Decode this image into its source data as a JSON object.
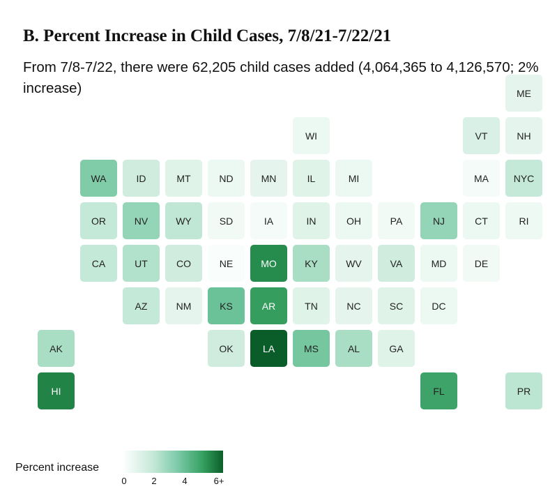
{
  "chart_data": {
    "type": "heatmap",
    "title": "B. Percent Increase in Child Cases, 7/8/21-7/22/21",
    "subtitle": "From 7/8-7/22, there were 62,205 child cases added (4,064,365 to 4,126,570; 2% increase)",
    "legend": {
      "label": "Percent increase",
      "ticks": [
        "0",
        "2",
        "4",
        "6+"
      ],
      "range": [
        0,
        6
      ]
    },
    "states": [
      {
        "abbr": "ME",
        "row": 0,
        "col": 11,
        "value": 0.8
      },
      {
        "abbr": "WI",
        "row": 1,
        "col": 6,
        "value": 0.6
      },
      {
        "abbr": "VT",
        "row": 1,
        "col": 10,
        "value": 1.2
      },
      {
        "abbr": "NH",
        "row": 1,
        "col": 11,
        "value": 0.8
      },
      {
        "abbr": "WA",
        "row": 2,
        "col": 1,
        "value": 3.0
      },
      {
        "abbr": "ID",
        "row": 2,
        "col": 2,
        "value": 1.4
      },
      {
        "abbr": "MT",
        "row": 2,
        "col": 3,
        "value": 1.0
      },
      {
        "abbr": "ND",
        "row": 2,
        "col": 4,
        "value": 0.6
      },
      {
        "abbr": "MN",
        "row": 2,
        "col": 5,
        "value": 0.8
      },
      {
        "abbr": "IL",
        "row": 2,
        "col": 6,
        "value": 1.0
      },
      {
        "abbr": "MI",
        "row": 2,
        "col": 7,
        "value": 0.6
      },
      {
        "abbr": "MA",
        "row": 2,
        "col": 10,
        "value": 0.3
      },
      {
        "abbr": "NYC",
        "row": 2,
        "col": 11,
        "value": 1.6
      },
      {
        "abbr": "OR",
        "row": 3,
        "col": 1,
        "value": 1.6
      },
      {
        "abbr": "NV",
        "row": 3,
        "col": 2,
        "value": 2.6
      },
      {
        "abbr": "WY",
        "row": 3,
        "col": 3,
        "value": 1.7
      },
      {
        "abbr": "SD",
        "row": 3,
        "col": 4,
        "value": 0.4
      },
      {
        "abbr": "IA",
        "row": 3,
        "col": 5,
        "value": 0.3
      },
      {
        "abbr": "IN",
        "row": 3,
        "col": 6,
        "value": 1.0
      },
      {
        "abbr": "OH",
        "row": 3,
        "col": 7,
        "value": 0.6
      },
      {
        "abbr": "PA",
        "row": 3,
        "col": 8,
        "value": 0.4
      },
      {
        "abbr": "NJ",
        "row": 3,
        "col": 9,
        "value": 2.6
      },
      {
        "abbr": "CT",
        "row": 3,
        "col": 10,
        "value": 0.6
      },
      {
        "abbr": "RI",
        "row": 3,
        "col": 11,
        "value": 0.5
      },
      {
        "abbr": "CA",
        "row": 4,
        "col": 1,
        "value": 1.6
      },
      {
        "abbr": "UT",
        "row": 4,
        "col": 2,
        "value": 2.0
      },
      {
        "abbr": "CO",
        "row": 4,
        "col": 3,
        "value": 1.4
      },
      {
        "abbr": "NE",
        "row": 4,
        "col": 4,
        "value": 0.2
      },
      {
        "abbr": "MO",
        "row": 4,
        "col": 5,
        "value": 5.0
      },
      {
        "abbr": "KY",
        "row": 4,
        "col": 6,
        "value": 2.2
      },
      {
        "abbr": "WV",
        "row": 4,
        "col": 7,
        "value": 0.8
      },
      {
        "abbr": "VA",
        "row": 4,
        "col": 8,
        "value": 1.4
      },
      {
        "abbr": "MD",
        "row": 4,
        "col": 9,
        "value": 0.6
      },
      {
        "abbr": "DE",
        "row": 4,
        "col": 10,
        "value": 0.4
      },
      {
        "abbr": "AZ",
        "row": 5,
        "col": 2,
        "value": 1.6
      },
      {
        "abbr": "NM",
        "row": 5,
        "col": 3,
        "value": 0.8
      },
      {
        "abbr": "KS",
        "row": 5,
        "col": 4,
        "value": 3.4
      },
      {
        "abbr": "AR",
        "row": 5,
        "col": 5,
        "value": 4.6
      },
      {
        "abbr": "TN",
        "row": 5,
        "col": 6,
        "value": 1.0
      },
      {
        "abbr": "NC",
        "row": 5,
        "col": 7,
        "value": 0.8
      },
      {
        "abbr": "SC",
        "row": 5,
        "col": 8,
        "value": 1.0
      },
      {
        "abbr": "DC",
        "row": 5,
        "col": 9,
        "value": 0.6
      },
      {
        "abbr": "AK",
        "row": 6,
        "col": 0,
        "value": 2.2
      },
      {
        "abbr": "OK",
        "row": 6,
        "col": 4,
        "value": 1.4
      },
      {
        "abbr": "LA",
        "row": 6,
        "col": 5,
        "value": 6.5
      },
      {
        "abbr": "MS",
        "row": 6,
        "col": 6,
        "value": 3.2
      },
      {
        "abbr": "AL",
        "row": 6,
        "col": 7,
        "value": 2.2
      },
      {
        "abbr": "GA",
        "row": 6,
        "col": 8,
        "value": 1.0
      },
      {
        "abbr": "HI",
        "row": 7,
        "col": 0,
        "value": 5.2
      },
      {
        "abbr": "FL",
        "row": 7,
        "col": 9,
        "value": 4.4
      },
      {
        "abbr": "PR",
        "row": 7,
        "col": 11,
        "value": 1.8
      }
    ]
  }
}
